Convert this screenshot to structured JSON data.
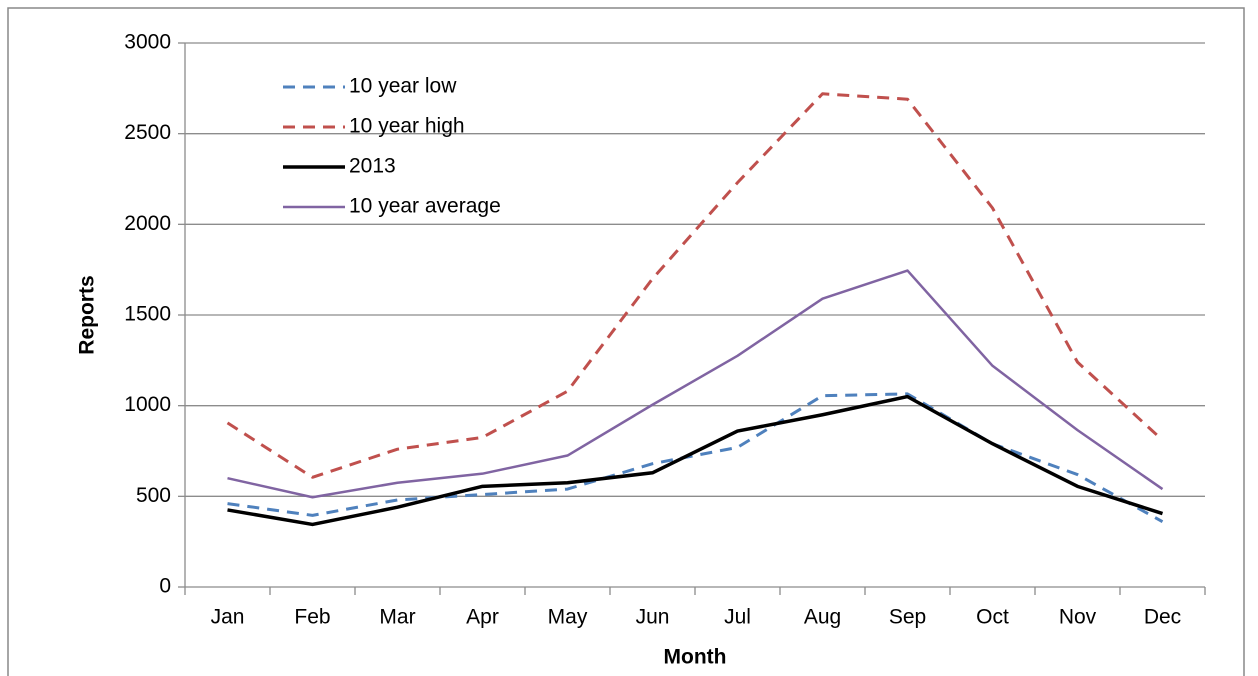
{
  "chart_data": {
    "type": "line",
    "x_label": "Month",
    "y_label": "Reports",
    "categories": [
      "Jan",
      "Feb",
      "Mar",
      "Apr",
      "May",
      "Jun",
      "Jul",
      "Aug",
      "Sep",
      "Oct",
      "Nov",
      "Dec"
    ],
    "series": [
      {
        "name": "10 year low",
        "color": "#4f81bd",
        "line_style": "dashed",
        "line_width": 3,
        "values": [
          460,
          395,
          480,
          510,
          540,
          680,
          770,
          1055,
          1065,
          790,
          620,
          360
        ]
      },
      {
        "name": "10 year high",
        "color": "#c0504d",
        "line_style": "dashed",
        "line_width": 3,
        "values": [
          905,
          605,
          760,
          825,
          1080,
          1700,
          2230,
          2720,
          2690,
          2090,
          1240,
          810
        ]
      },
      {
        "name": "2013",
        "color": "#000000",
        "line_style": "solid",
        "line_width": 3.5,
        "values": [
          425,
          345,
          440,
          555,
          575,
          630,
          860,
          950,
          1050,
          790,
          555,
          405
        ]
      },
      {
        "name": "10 year average",
        "color": "#8064a2",
        "line_style": "solid",
        "line_width": 2.5,
        "values": [
          600,
          495,
          575,
          625,
          725,
          1005,
          1275,
          1590,
          1745,
          1220,
          865,
          540
        ]
      }
    ],
    "ylim": [
      0,
      3000
    ],
    "yticks": [
      0,
      500,
      1000,
      1500,
      2000,
      2500,
      3000
    ],
    "grid": true,
    "legend": "upper left"
  }
}
